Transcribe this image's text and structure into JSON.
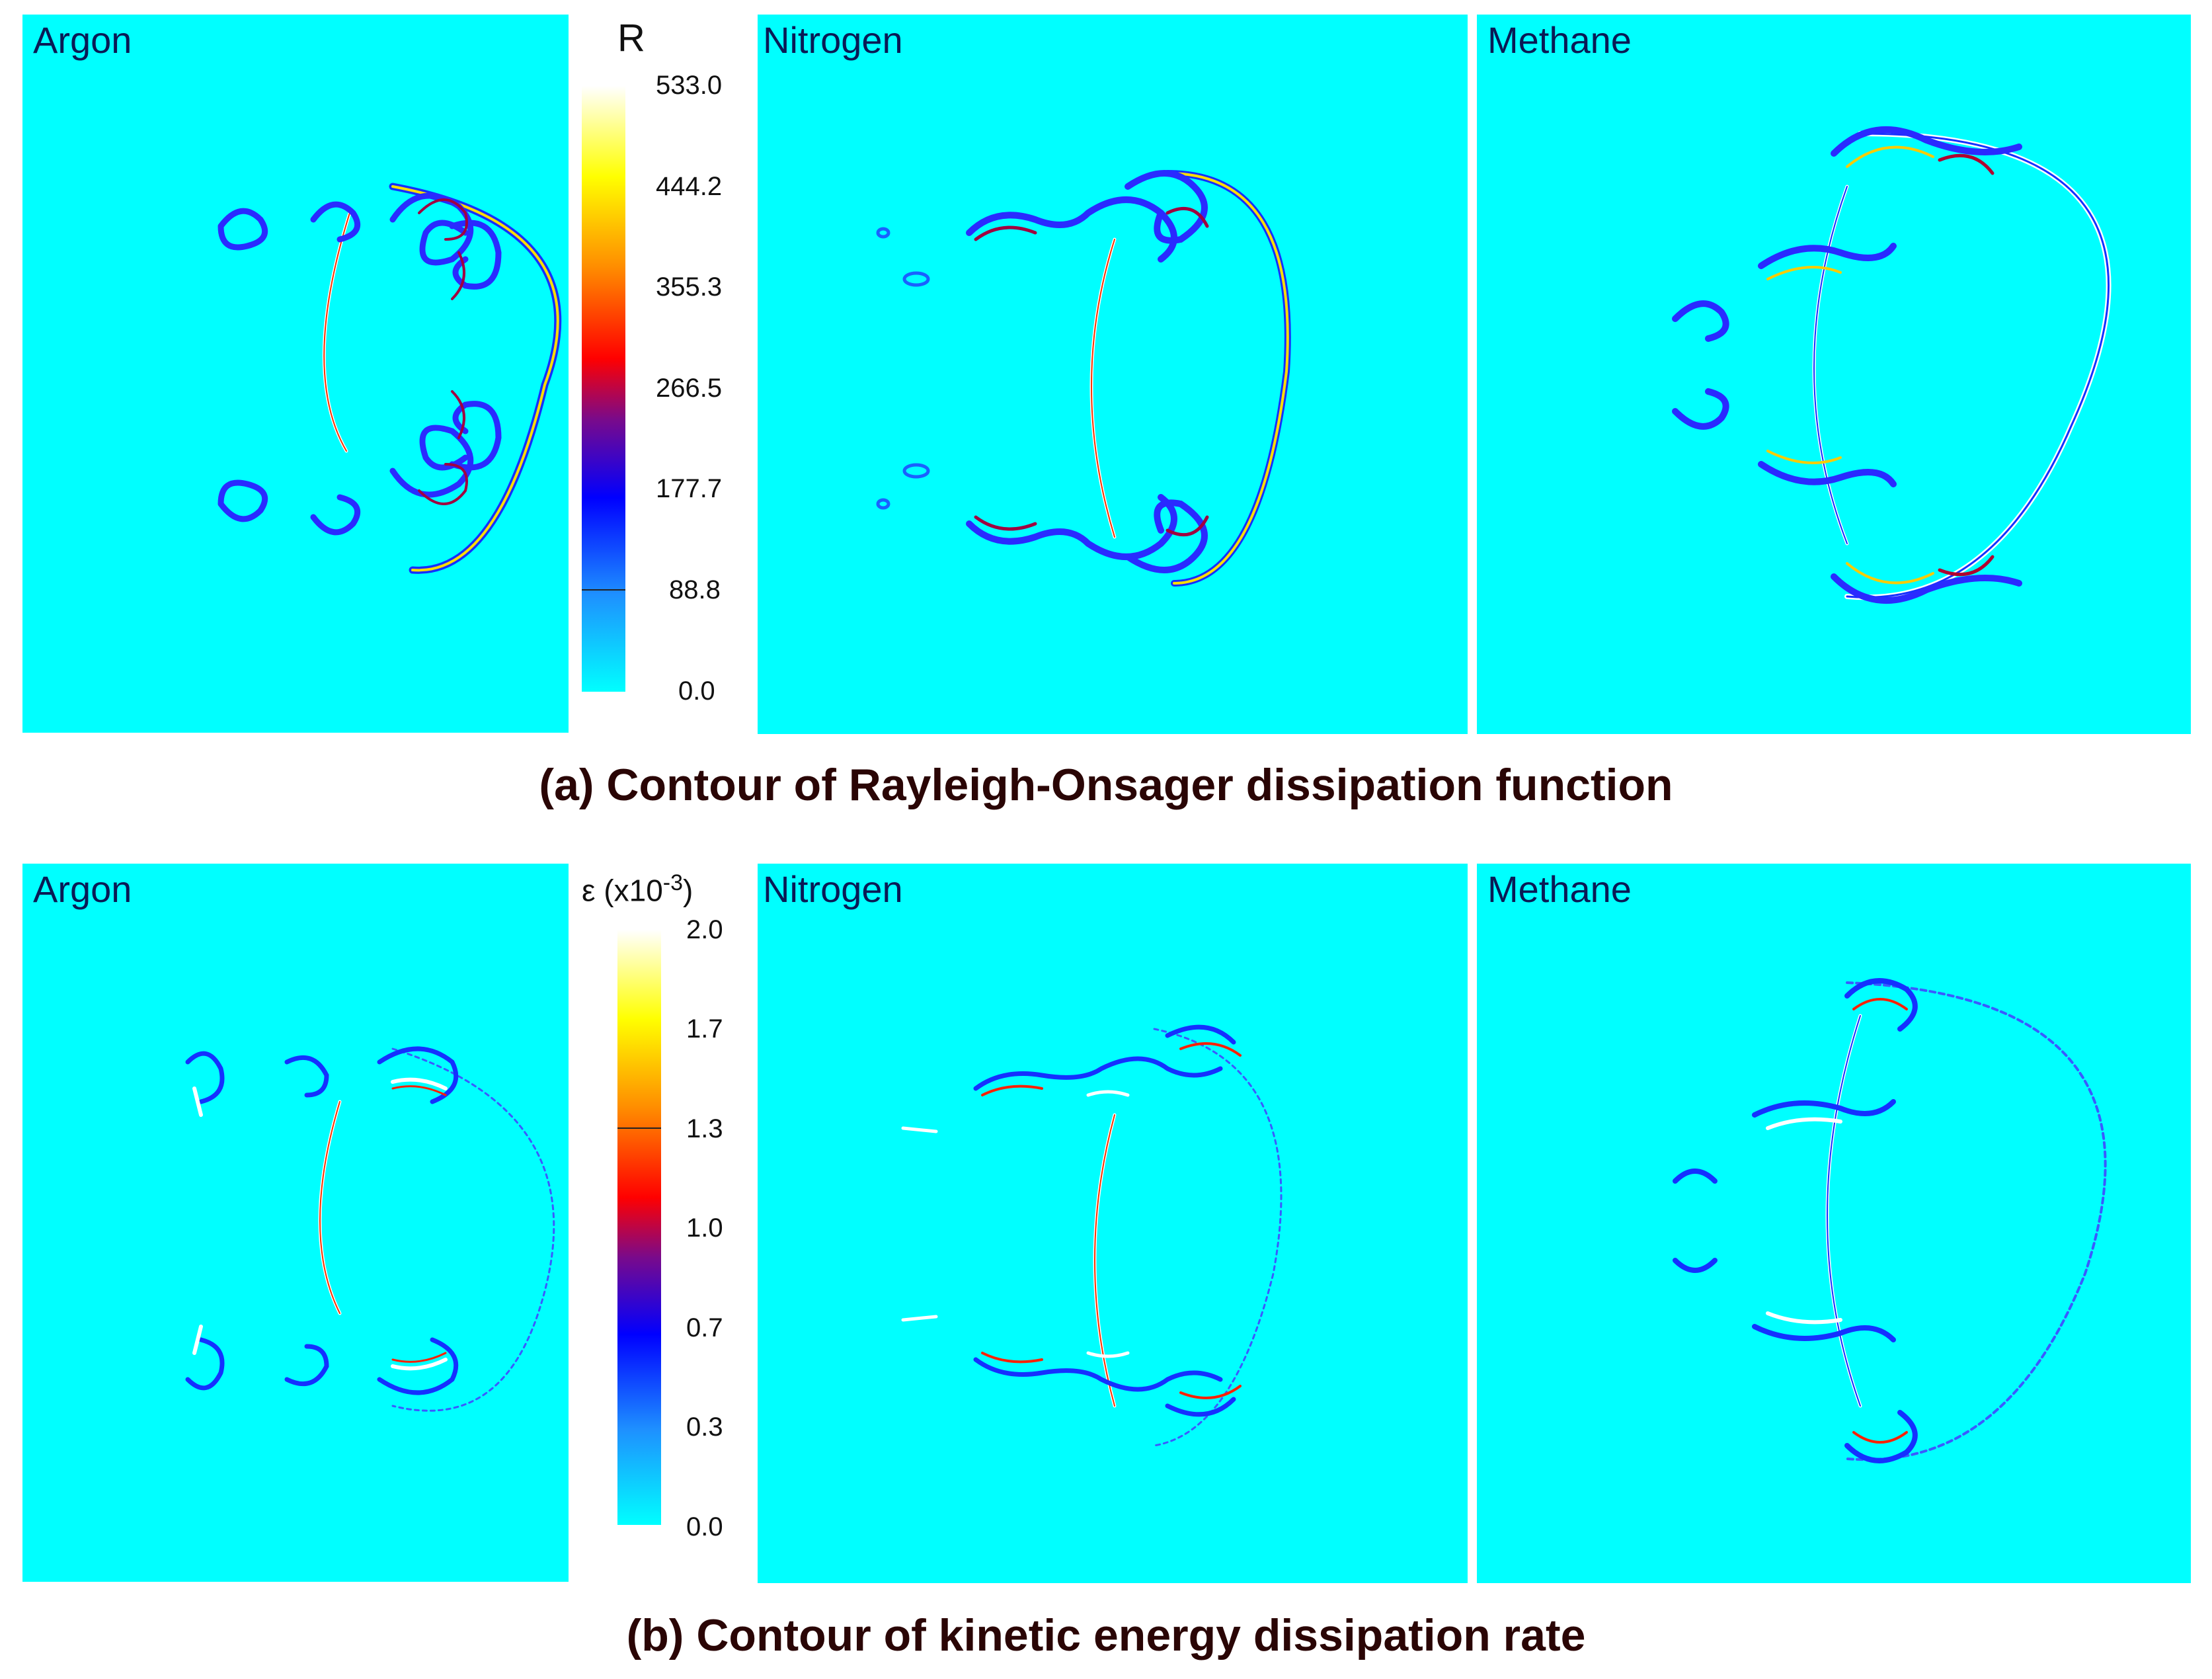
{
  "rowA": {
    "caption": "(a) Contour of Rayleigh-Onsager dissipation function",
    "panels": [
      "Argon",
      "Nitrogen",
      "Methane"
    ],
    "colorbar": {
      "title": "R",
      "ticks": [
        "533.0",
        "444.2",
        "355.3",
        "266.5",
        "177.7",
        "88.8",
        "0.0"
      ]
    }
  },
  "rowB": {
    "caption": "(b) Contour of kinetic energy dissipation rate",
    "panels": [
      "Argon",
      "Nitrogen",
      "Methane"
    ],
    "colorbar": {
      "title_symbol": "ε (x10",
      "title_exponent": "-3",
      "title_close": ")",
      "ticks": [
        "2.0",
        "1.7",
        "1.3",
        "1.0",
        "0.7",
        "0.3",
        "0.0"
      ]
    }
  },
  "colors": {
    "background_field": "#00ffff",
    "colormap": [
      "#00ffff",
      "#1e90ff",
      "#0000ff",
      "#8b008b",
      "#ff0000",
      "#ff8c00",
      "#ffff00",
      "#ffffff"
    ]
  }
}
